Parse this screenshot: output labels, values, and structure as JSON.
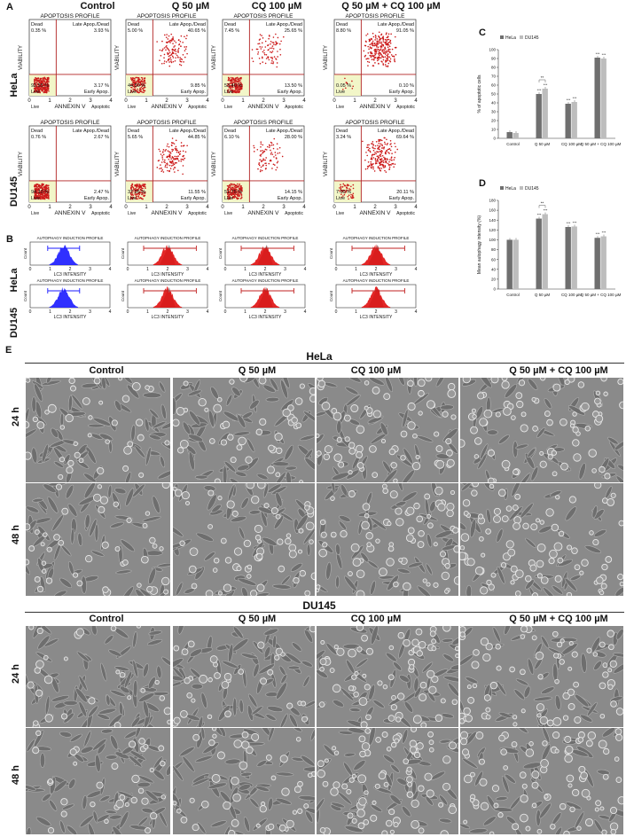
{
  "panel_letters": {
    "a": "A",
    "b": "B",
    "c": "C",
    "d": "D",
    "e": "E"
  },
  "treatments": [
    "Control",
    "Q  50 µM",
    "CQ  100 µM",
    "Q 50 µM + CQ 100 µM"
  ],
  "cell_lines": [
    "HeLa",
    "DU145"
  ],
  "flow": {
    "title": "APOPTOSIS PROFILE",
    "ylabel": "VIABILITY",
    "xlabel": "ANNEXIN V",
    "q_dead": "Dead",
    "q_late": "Late Apop./Dead",
    "q_early": "Early Apop.",
    "q_live": "Live",
    "x_live": "Live",
    "x_apoptotic": "Apoptotic",
    "ticks": [
      "0",
      "1",
      "2",
      "3",
      "4"
    ],
    "plots": [
      {
        "dead": "0.35 %",
        "late": "3.93 %",
        "early": "3.17 %",
        "live": "92.55 %",
        "spread": 0.0
      },
      {
        "dead": "5.00 %",
        "late": "40.65 %",
        "early": "9.85 %",
        "live": "44.50 %",
        "spread": 0.45
      },
      {
        "dead": "7.45 %",
        "late": "25.65 %",
        "early": "13.50 %",
        "live": "53.40 %",
        "spread": 0.3
      },
      {
        "dead": "8.80 %",
        "late": "91.05 %",
        "early": "0.10 %",
        "live": "0.05 %",
        "spread": 0.95
      },
      {
        "dead": "0.76 %",
        "late": "2.67 %",
        "early": "2.47 %",
        "live": "94.10 %",
        "spread": 0.0
      },
      {
        "dead": "5.65 %",
        "late": "44.85 %",
        "early": "11.55 %",
        "live": "37.95 %",
        "spread": 0.5
      },
      {
        "dead": "6.10 %",
        "late": "28.00 %",
        "early": "14.15 %",
        "live": "51.75 %",
        "spread": 0.3
      },
      {
        "dead": "3.24 %",
        "late": "69.64 %",
        "early": "20.11 %",
        "live": "7.00 %",
        "spread": 0.8
      }
    ]
  },
  "hist": {
    "title": "AUTOPHAGY INDUCTION PROFILE",
    "xlabel": "LC3 INTENSITY",
    "ylabel": "Count",
    "ticks": [
      "0",
      "1",
      "2",
      "3",
      "4"
    ]
  },
  "chart_c": {
    "legend": [
      "HeLa",
      "DU145"
    ],
    "ylabel": "% of apoptotic cells",
    "colors": [
      "#6f6f6f",
      "#bdbdbd"
    ],
    "chart_data": {
      "type": "bar",
      "categories": [
        "Control",
        "Q 50 µM",
        "CQ 100 µM",
        "Q 50 µM + CQ 100 µM"
      ],
      "series": [
        {
          "name": "HeLa",
          "values": [
            7,
            50,
            39,
            91
          ]
        },
        {
          "name": "DU145",
          "values": [
            6,
            56,
            41,
            90
          ]
        }
      ],
      "ylim": [
        0,
        100
      ],
      "yticks": [
        0,
        10,
        20,
        30,
        40,
        50,
        60,
        70,
        80,
        90,
        100
      ],
      "annotations": [
        "**",
        "***",
        "***",
        "***",
        "***",
        "***",
        "***"
      ]
    }
  },
  "chart_d": {
    "legend": [
      "HeLa",
      "DU145"
    ],
    "ylabel": "Mean autophagy intensity (%)",
    "colors": [
      "#6f6f6f",
      "#bdbdbd"
    ],
    "chart_data": {
      "type": "bar",
      "categories": [
        "Control",
        "Q 50 µM",
        "CQ 100 µM",
        "Q 50 µM + CQ 100 µM"
      ],
      "series": [
        {
          "name": "HeLa",
          "values": [
            100,
            143,
            126,
            104
          ]
        },
        {
          "name": "DU145",
          "values": [
            100,
            152,
            127,
            107
          ]
        }
      ],
      "ylim": [
        0,
        180
      ],
      "yticks": [
        0,
        20,
        40,
        60,
        80,
        100,
        120,
        140,
        160,
        180
      ],
      "annotations": [
        "**",
        "***",
        "***",
        "***",
        "***"
      ]
    }
  },
  "micro": {
    "hela_title": "HeLa",
    "du145_title": "DU145",
    "times": [
      "24 h",
      "48 h"
    ],
    "density": [
      [
        0.25,
        0.3,
        0.5,
        0.6
      ],
      [
        0.3,
        0.45,
        0.55,
        0.7
      ],
      [
        0.15,
        0.2,
        0.5,
        0.55
      ],
      [
        0.2,
        0.3,
        0.6,
        0.65
      ]
    ]
  }
}
